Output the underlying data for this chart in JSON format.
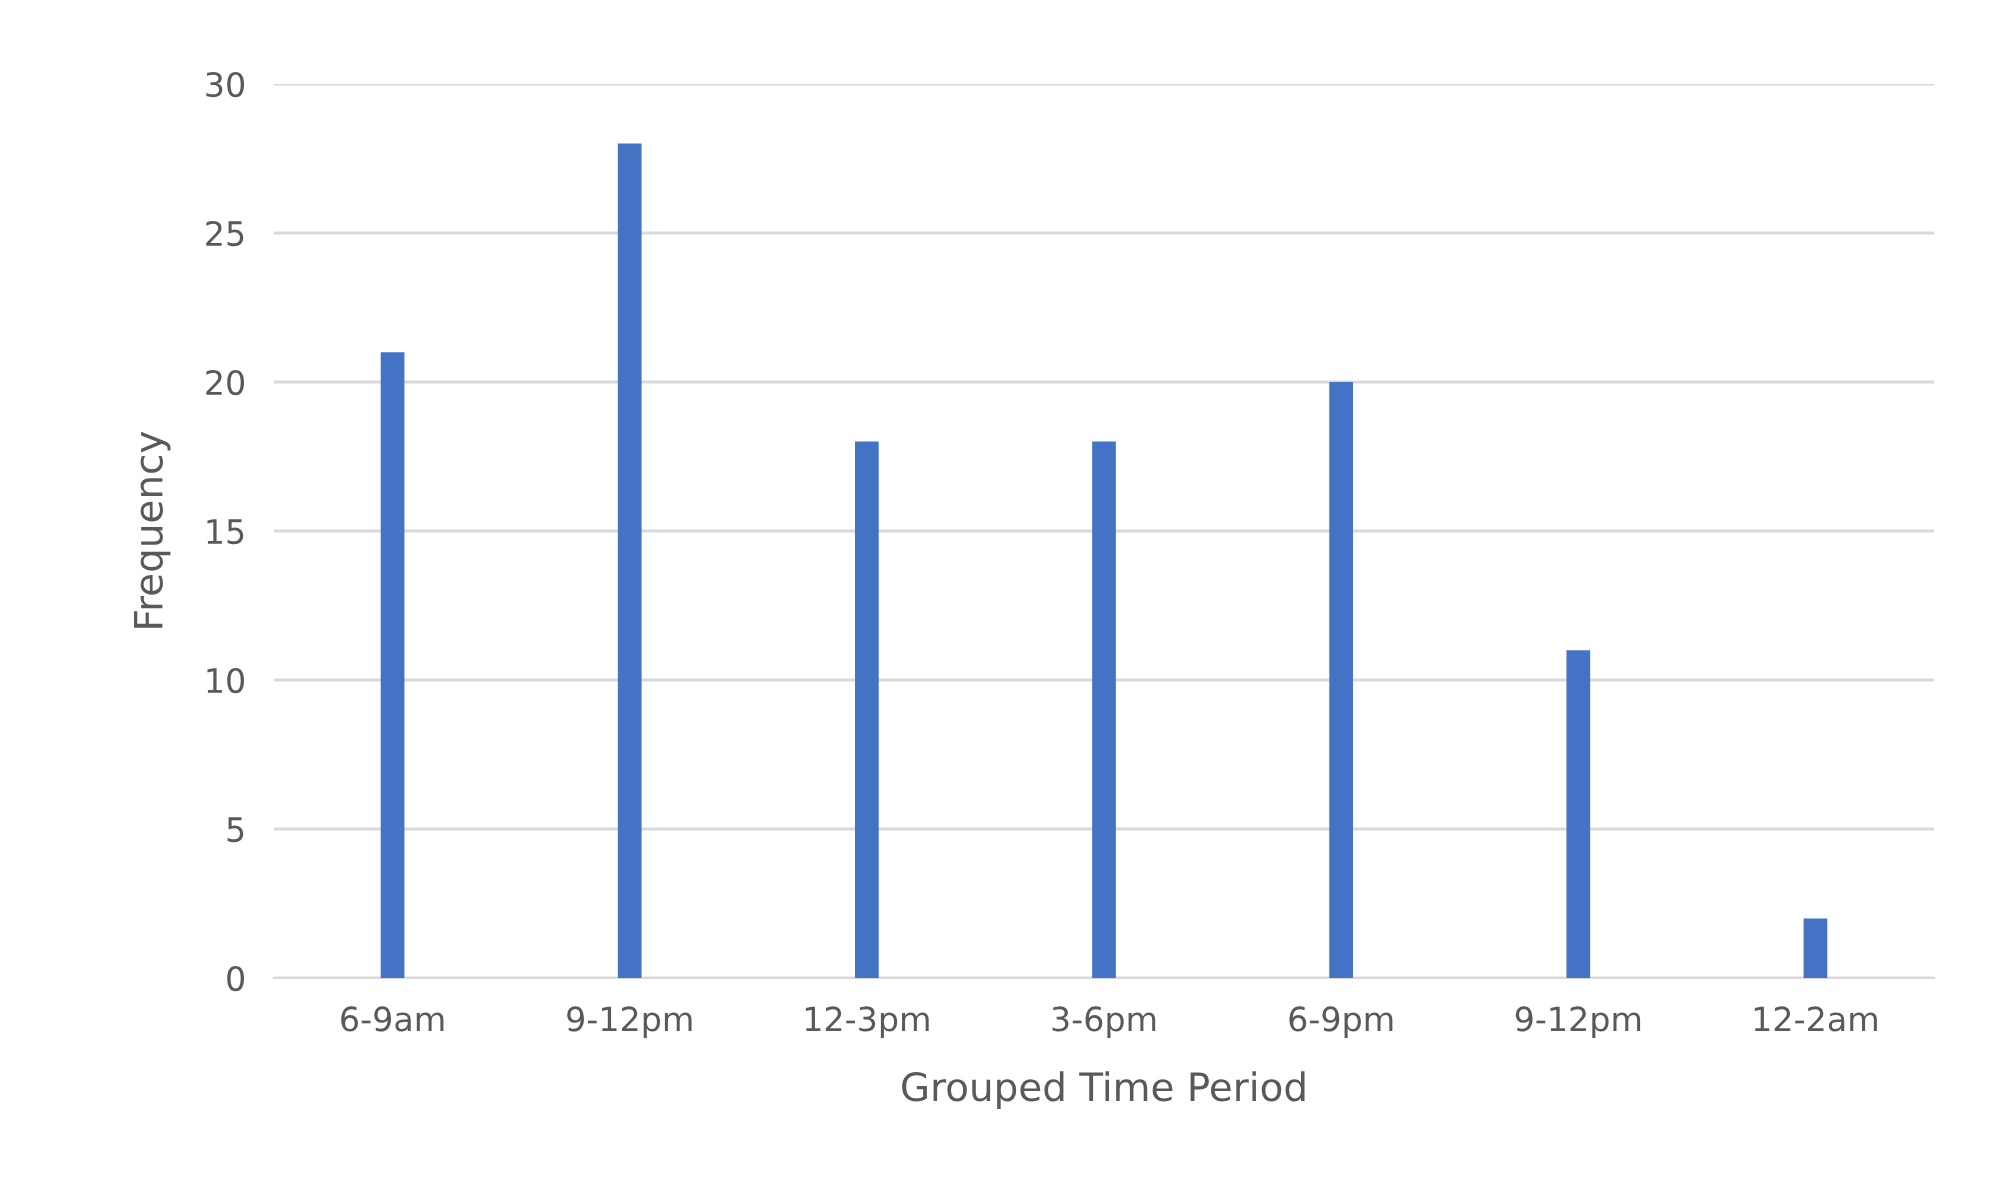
{
  "chart_data": {
    "type": "bar",
    "xlabel": "Grouped Time Period",
    "ylabel": "Frequency",
    "categories": [
      "6-9am",
      "9-12pm",
      "12-3pm",
      "3-6pm",
      "6-9pm",
      "9-12pm",
      "12-2am"
    ],
    "values": [
      21,
      28,
      18,
      18,
      20,
      11,
      2
    ],
    "color": "#4472c4",
    "ylim": [
      0,
      30
    ],
    "yticks": [
      0,
      5,
      10,
      15,
      20,
      25,
      30
    ],
    "grid": "y",
    "legend": false
  }
}
